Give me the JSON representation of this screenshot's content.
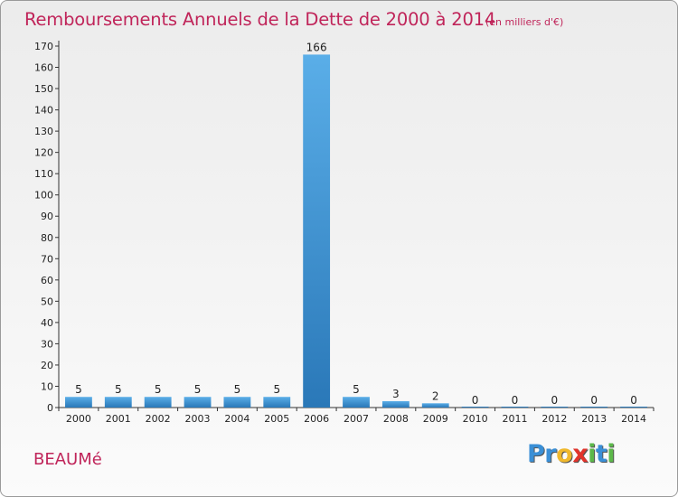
{
  "title": "Remboursements Annuels de la Dette de 2000 à 2014",
  "unit": "(en milliers d'€)",
  "commune": "BEAUMé",
  "logo": {
    "letters": [
      {
        "ch": "P",
        "color": "#3a8fd6"
      },
      {
        "ch": "r",
        "color": "#3a8fd6"
      },
      {
        "ch": "o",
        "color": "#f0b82c"
      },
      {
        "ch": "x",
        "color": "#e1342c"
      },
      {
        "ch": "i",
        "color": "#5cb84a"
      },
      {
        "ch": "t",
        "color": "#3a8fd6"
      },
      {
        "ch": "i",
        "color": "#5cb84a"
      }
    ]
  },
  "chart_data": {
    "type": "bar",
    "categories": [
      "2000",
      "2001",
      "2002",
      "2003",
      "2004",
      "2005",
      "2006",
      "2007",
      "2008",
      "2009",
      "2010",
      "2011",
      "2012",
      "2013",
      "2014"
    ],
    "values": [
      5,
      5,
      5,
      5,
      5,
      5,
      166,
      5,
      3,
      2,
      0,
      0,
      0,
      0,
      0
    ],
    "data_labels": [
      "5",
      "5",
      "5",
      "5",
      "5",
      "5",
      "166",
      "5",
      "3",
      "2",
      "0",
      "0",
      "0",
      "0",
      "0"
    ],
    "title": "Remboursements Annuels de la Dette de 2000 à 2014",
    "xlabel": "",
    "ylabel": "",
    "ylim": [
      0,
      170
    ],
    "yticks": [
      0,
      10,
      20,
      30,
      40,
      50,
      60,
      70,
      80,
      90,
      100,
      110,
      120,
      130,
      140,
      150,
      160,
      170
    ],
    "grid": false,
    "legend": "none",
    "bar_color_top": "#5aaee8",
    "bar_color_bottom": "#2a78b8"
  }
}
